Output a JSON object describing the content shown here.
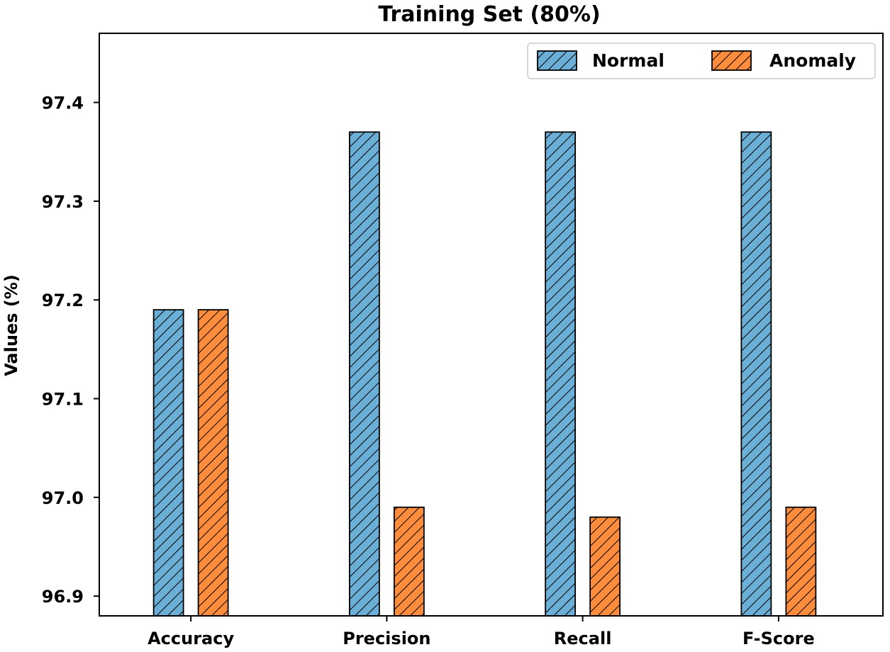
{
  "chart_data": {
    "type": "bar",
    "title": "Training Set (80%)",
    "xlabel": "",
    "ylabel": "Values (%)",
    "categories": [
      "Accuracy",
      "Precision",
      "Recall",
      "F-Score"
    ],
    "series": [
      {
        "name": "Normal",
        "values": [
          97.19,
          97.37,
          97.37,
          97.37
        ],
        "color": "#6baed6",
        "hatch": "\\\\"
      },
      {
        "name": "Anomaly",
        "values": [
          97.19,
          96.99,
          96.98,
          96.99
        ],
        "color": "#fd8d3c",
        "hatch": "\\\\"
      }
    ],
    "ylim": [
      96.88,
      97.47
    ],
    "yticks": [
      "96.9",
      "97.0",
      "97.1",
      "97.2",
      "97.3",
      "97.4"
    ],
    "grid": false,
    "legend": {
      "position": "top-right",
      "columns": 2
    }
  }
}
